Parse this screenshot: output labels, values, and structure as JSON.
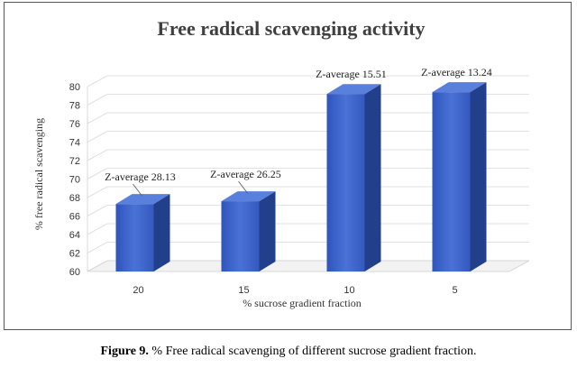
{
  "chart_data": {
    "type": "bar",
    "title": "Free radical scavenging activity",
    "xlabel": "% sucrose gradient fraction",
    "ylabel": "% free radical scavenging",
    "categories": [
      "20",
      "15",
      "10",
      "5"
    ],
    "values": [
      67.3,
      67.6,
      79.2,
      79.4
    ],
    "annotations": [
      "Z-average 28.13",
      "Z-average 26.25",
      "Z-average 15.51",
      "Z-average 13.24"
    ],
    "ylim": [
      60,
      80
    ],
    "yticks": [
      "60",
      "62",
      "64",
      "66",
      "68",
      "70",
      "72",
      "74",
      "76",
      "78",
      "80"
    ],
    "grid": true,
    "legend": "none",
    "colors": {
      "bar_front": "#3a62c9",
      "bar_side": "#213f8a",
      "bar_top": "#5a80dd"
    }
  },
  "caption": {
    "label": "Figure 9.",
    "text": " % Free radical scavenging of different sucrose gradient fraction."
  }
}
